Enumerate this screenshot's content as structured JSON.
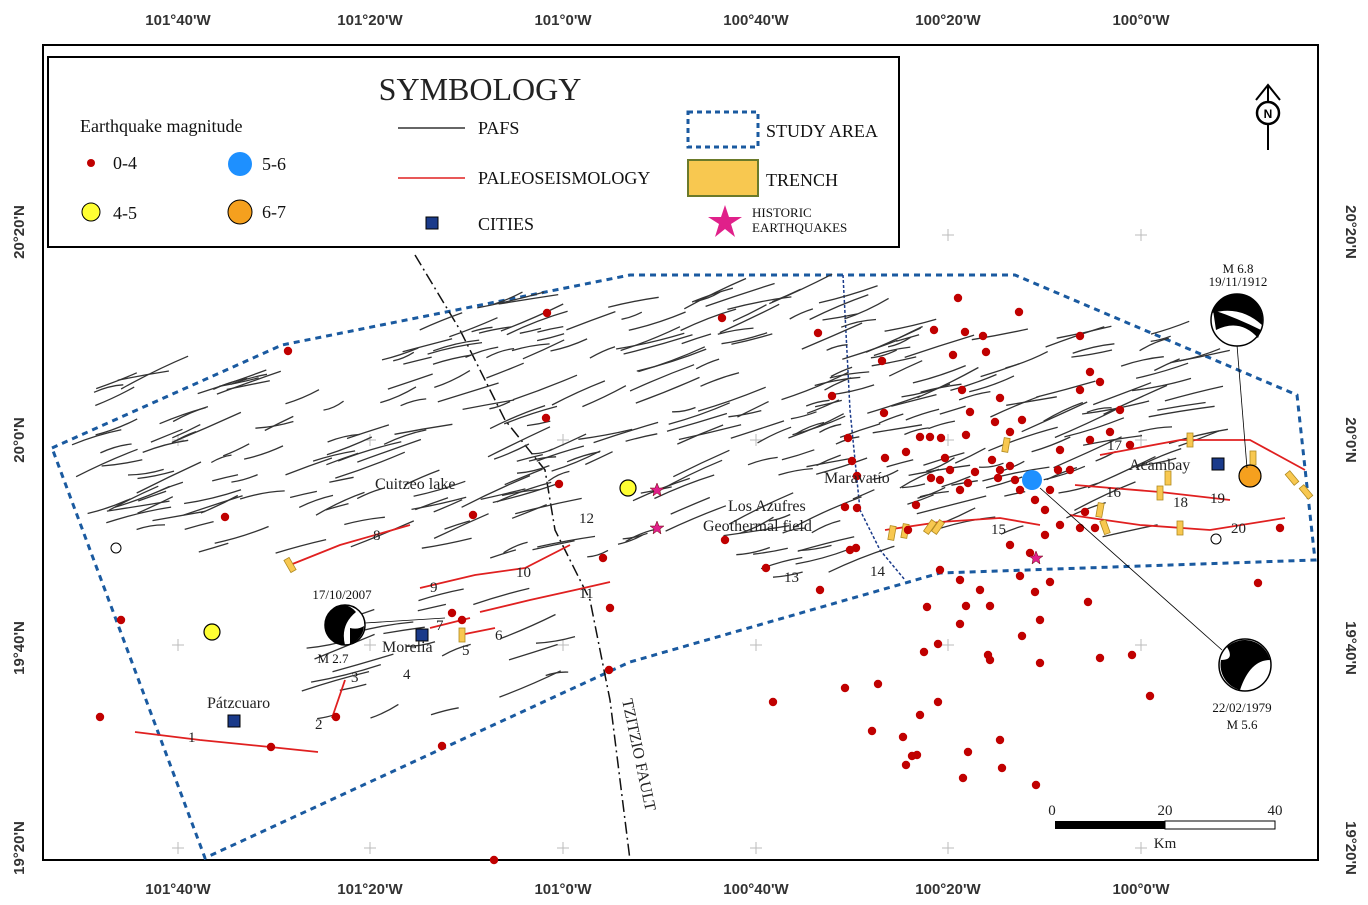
{
  "top_ticks": [
    "101°40'W",
    "101°20'W",
    "101°0'W",
    "100°40'W",
    "100°20'W",
    "100°0'W"
  ],
  "bottom_ticks": [
    "101°40'W",
    "101°20'W",
    "101°0'W",
    "100°40'W",
    "100°20'W",
    "100°0'W"
  ],
  "left_ticks": [
    "20°20'N",
    "20°0'N",
    "19°40'N",
    "19°20'N"
  ],
  "right_ticks": [
    "20°20'N",
    "20°0'N",
    "19°40'N",
    "19°20'N"
  ],
  "legend": {
    "title": "SYMBOLOGY",
    "eq_header": "Earthquake magnitude",
    "m04": "0-4",
    "m45": "4-5",
    "m56": "5-6",
    "m67": "6-7",
    "pafs": "PAFS",
    "paleo": "PALEOSEISMOLOGY",
    "cities": "CITIES",
    "study": "STUDY AREA",
    "trench": "TRENCH",
    "historic1": "HISTORIC",
    "historic2": "EARTHQUAKES"
  },
  "colors": {
    "eq04": "#c00000",
    "eq45": "#ffff33",
    "eq56": "#1e90ff",
    "eq67": "#f5a01e",
    "fault": "#333333",
    "paleo": "#e02020",
    "study": "#1a5aa0",
    "trench": "#f8c850",
    "city": "#1a3a8a",
    "historic": "#e0208a"
  },
  "places": {
    "cuitzeo": "Cuitzeo lake",
    "azufres1": "Los Azufres",
    "azufres2": "Geothermal field",
    "maravatio": "Maravatío",
    "acambay": "Acambay",
    "morelia": "Morelia",
    "patzcuaro": "Pátzcuaro",
    "tzitzio": "TZITZIO FAULT"
  },
  "focal": {
    "m1912_mag": "M 6.8",
    "m1912_date": "19/11/1912",
    "m1979_date": "22/02/1979",
    "m1979_mag": "M 5.6",
    "m2007_date": "17/10/2007",
    "m2007_mag": "M 2.7"
  },
  "fault_numbers": [
    "1",
    "2",
    "3",
    "4",
    "5",
    "6",
    "7",
    "8",
    "9",
    "10",
    "11",
    "12",
    "13",
    "14",
    "15",
    "16",
    "17",
    "18",
    "19",
    "20"
  ],
  "scale": {
    "v0": "0",
    "v1": "20",
    "v2": "40",
    "unit": "Km"
  },
  "north": "N"
}
